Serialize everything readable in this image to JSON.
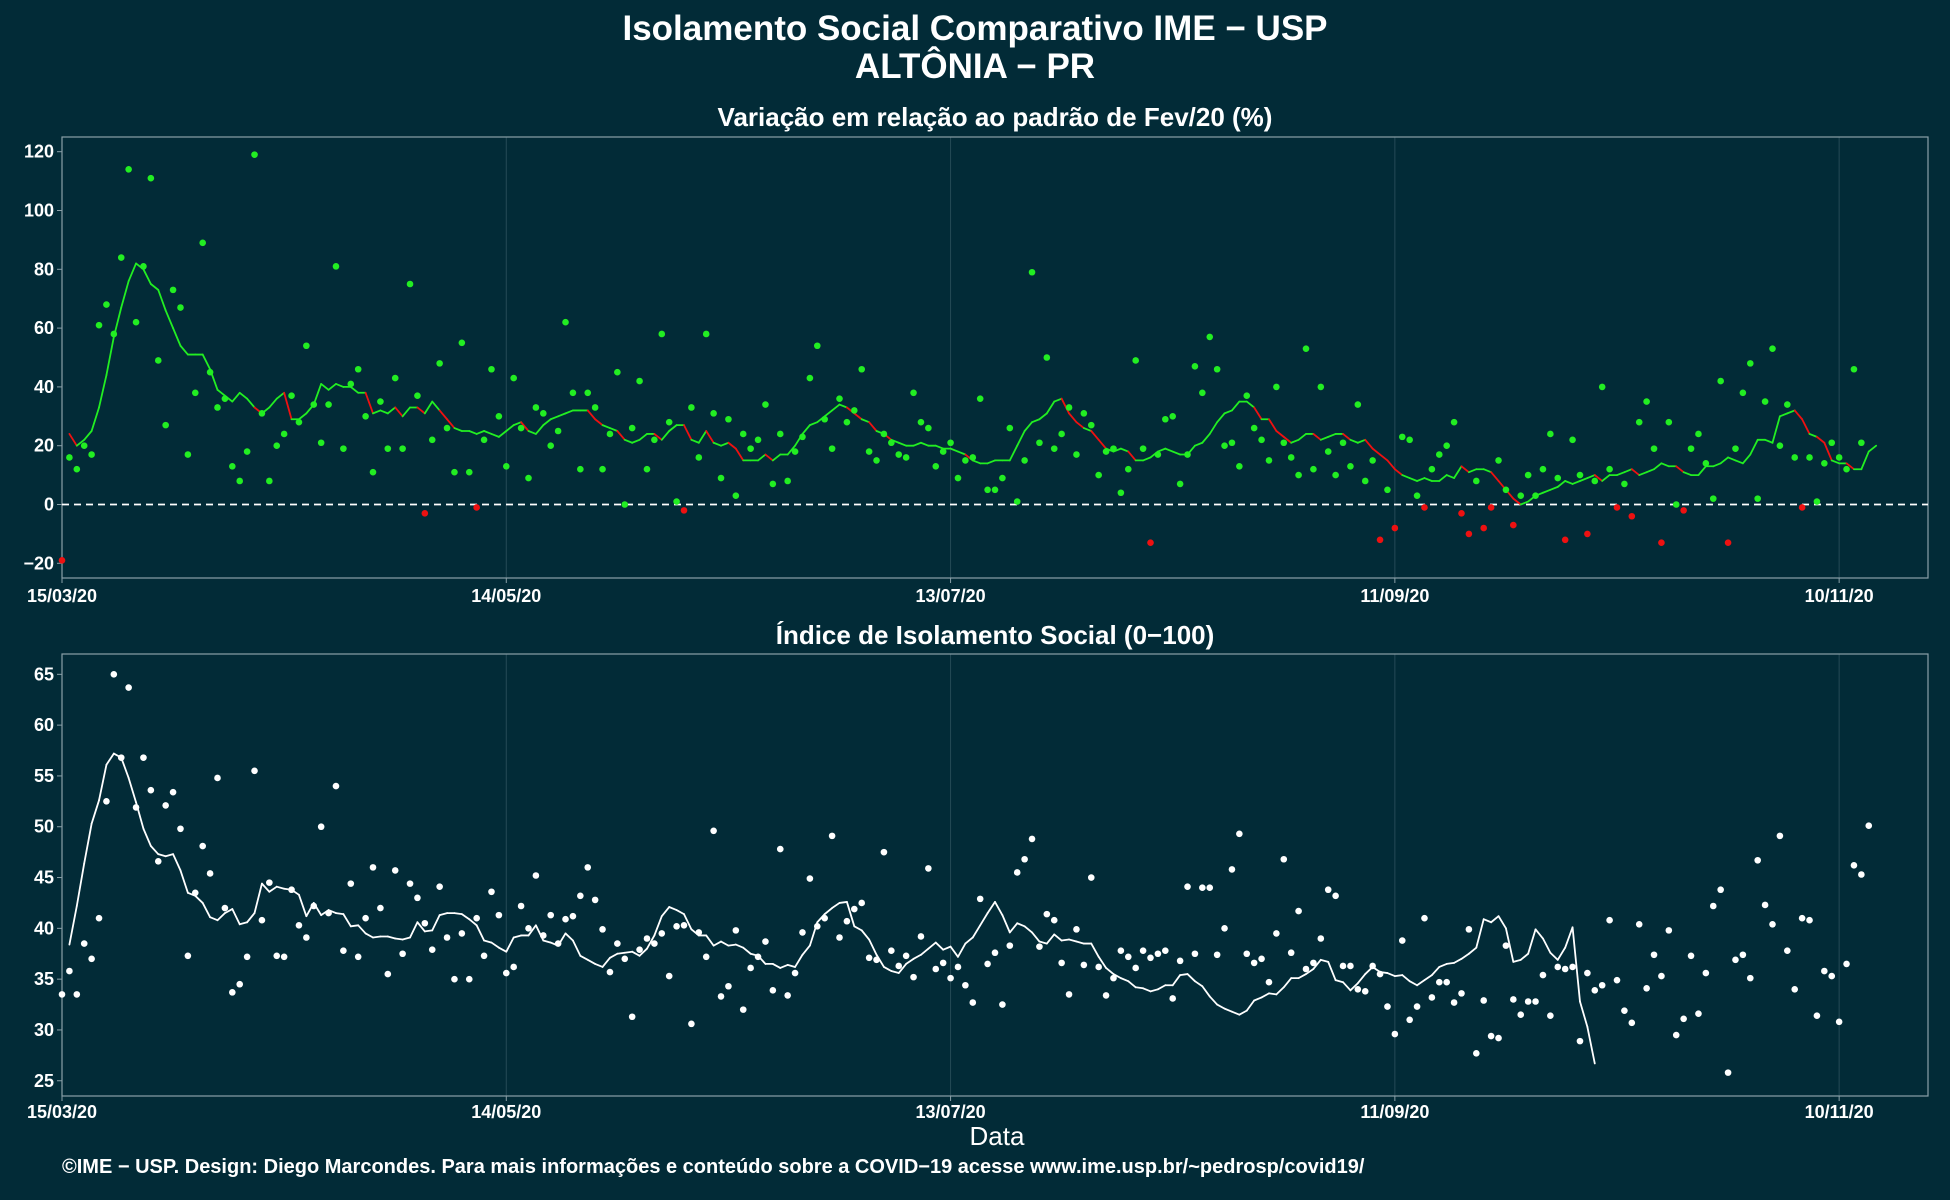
{
  "title": "Isolamento Social Comparativo IME − USP",
  "subtitle": "ALTÔNIA − PR",
  "xlabel": "Data",
  "footer": "©IME − USP. Design: Diego Marcondes. Para mais informações e conteúdo sobre a COVID−19 acesse www.ime.usp.br/~pedrosp/covid19/",
  "colors": {
    "background": "#022b37",
    "positive": "#22ee22",
    "negative": "#ee1111",
    "index": "#ffffff",
    "border": "#8aa0a8",
    "grid": "#254a56"
  },
  "chart_data": [
    {
      "type": "scatter",
      "title": "Variação em relação ao padrão de Fev/20 (%)",
      "x_tick_labels": [
        "15/03/20",
        "14/05/20",
        "13/07/20",
        "11/09/20",
        "10/11/20"
      ],
      "x_tick_days": [
        0,
        60,
        120,
        180,
        240
      ],
      "x_range_days": [
        0,
        252
      ],
      "start_label": "15/03/20",
      "y_ticks": [
        -20,
        0,
        20,
        40,
        60,
        80,
        100,
        120
      ],
      "ylim": [
        -25,
        125
      ],
      "reference_line": 0,
      "series": [
        {
          "role": "points",
          "values": [
            -19,
            16,
            12,
            20,
            17,
            61,
            68,
            58,
            84,
            114,
            62,
            81,
            111,
            49,
            27,
            73,
            67,
            17,
            38,
            89,
            45,
            33,
            36,
            13,
            8,
            18,
            119,
            31,
            8,
            20,
            24,
            37,
            28,
            54,
            34,
            21,
            34,
            81,
            19,
            41,
            46,
            30,
            11,
            35,
            19,
            43,
            19,
            75,
            37,
            -3,
            22,
            48,
            26,
            11,
            55,
            11,
            -1,
            22,
            46,
            30,
            13,
            43,
            26,
            9,
            33,
            31,
            20,
            25,
            62,
            38,
            12,
            38,
            33,
            12,
            24,
            45,
            0,
            26,
            42,
            12,
            22,
            58,
            28,
            1,
            -2,
            33,
            16,
            58,
            31,
            9,
            29,
            3,
            24,
            19,
            22,
            34,
            7,
            24,
            8,
            18,
            23,
            43,
            54,
            29,
            19,
            36,
            28,
            32,
            46,
            18,
            15,
            24,
            21,
            17,
            16,
            38,
            28,
            26,
            13,
            18,
            21,
            9,
            15,
            16,
            36,
            5,
            5,
            9,
            26,
            1,
            15,
            79,
            21,
            50,
            19,
            24,
            33,
            17,
            31,
            27,
            10,
            18,
            19,
            4,
            12,
            49,
            19,
            -13,
            17,
            29,
            30,
            7,
            17,
            47,
            38,
            57,
            46,
            20,
            21,
            13,
            37,
            26,
            22,
            15,
            40,
            21,
            16,
            10,
            53,
            12,
            40,
            18,
            10,
            21,
            13,
            34,
            8,
            15,
            -12,
            5,
            -8,
            23,
            22,
            3,
            -1,
            12,
            17,
            20,
            28,
            -3,
            -10,
            8,
            -8,
            -1,
            15,
            5,
            -7,
            3,
            10,
            3,
            12,
            24,
            9,
            -12,
            22,
            10,
            -10,
            8,
            40,
            12,
            -1,
            7,
            -4,
            28,
            35,
            19,
            -13,
            28,
            0,
            -2,
            19,
            24,
            14,
            2,
            42,
            -13,
            19,
            38,
            48,
            2,
            35,
            53,
            20,
            34,
            16,
            -1,
            16,
            1,
            14,
            21,
            16,
            12,
            46,
            21
          ]
        },
        {
          "role": "moving_average",
          "values": [
            24,
            20,
            22,
            25,
            33,
            44,
            57,
            67,
            76,
            82,
            80,
            75,
            73,
            66,
            60,
            54,
            51,
            51,
            51,
            46,
            39,
            37,
            35,
            38,
            36,
            33,
            31,
            33,
            36,
            38,
            29,
            29,
            31,
            34,
            41,
            39,
            41,
            40,
            40,
            38,
            38,
            31,
            32,
            31,
            33,
            30,
            33,
            33,
            31,
            35,
            32,
            29,
            26,
            25,
            25,
            24,
            25,
            24,
            23,
            25,
            27,
            28,
            25,
            24,
            27,
            29,
            30,
            31,
            32,
            32,
            32,
            29,
            27,
            26,
            25,
            22,
            21,
            22,
            24,
            24,
            22,
            25,
            27,
            27,
            22,
            21,
            25,
            21,
            20,
            21,
            19,
            15,
            15,
            15,
            17,
            15,
            17,
            17,
            20,
            24,
            27,
            28,
            30,
            32,
            34,
            33,
            31,
            29,
            28,
            25,
            24,
            22,
            21,
            20,
            20,
            21,
            20,
            20,
            19,
            19,
            18,
            17,
            15,
            14,
            14,
            15,
            15,
            15,
            20,
            25,
            28,
            29,
            31,
            35,
            36,
            31,
            28,
            26,
            25,
            22,
            19,
            18,
            19,
            18,
            15,
            15,
            16,
            18,
            19,
            18,
            17,
            17,
            20,
            21,
            24,
            28,
            31,
            32,
            35,
            35,
            33,
            29,
            29,
            25,
            23,
            21,
            22,
            24,
            24,
            22,
            23,
            24,
            24,
            22,
            21,
            22,
            19,
            17,
            15,
            12,
            10,
            9,
            8,
            9,
            8,
            8,
            10,
            9,
            13,
            11,
            12,
            12,
            11,
            8,
            5,
            2,
            0,
            1,
            3,
            4,
            5,
            6,
            8,
            7,
            8,
            9,
            10,
            8,
            10,
            10,
            11,
            12,
            10,
            11,
            12,
            14,
            13,
            13,
            11,
            10,
            10,
            13,
            13,
            14,
            16,
            15,
            14,
            17,
            22,
            22,
            21,
            30,
            31,
            32,
            29,
            24,
            23,
            21,
            15,
            14,
            14,
            12,
            12,
            18,
            20
          ]
        }
      ]
    },
    {
      "type": "scatter",
      "title": "Índice de Isolamento Social (0−100)",
      "x_tick_labels": [
        "15/03/20",
        "14/05/20",
        "13/07/20",
        "11/09/20",
        "10/11/20"
      ],
      "x_tick_days": [
        0,
        60,
        120,
        180,
        240
      ],
      "x_range_days": [
        0,
        252
      ],
      "start_label": "15/03/20",
      "y_ticks": [
        25,
        30,
        35,
        40,
        45,
        50,
        55,
        60,
        65
      ],
      "ylim": [
        23.5,
        67
      ],
      "series": [
        {
          "role": "points",
          "values": [
            33.5,
            35.8,
            33.5,
            38.5,
            37,
            41,
            52.5,
            65,
            56.8,
            63.7,
            51.9,
            56.8,
            53.6,
            46.6,
            52.1,
            53.4,
            49.8,
            37.3,
            43.5,
            48.1,
            45.4,
            54.8,
            42,
            33.7,
            34.5,
            37.2,
            55.5,
            40.8,
            44.5,
            37.3,
            37.2,
            43.8,
            40.3,
            39.1,
            42.2,
            50,
            41.5,
            54,
            37.8,
            44.4,
            37.2,
            41,
            46,
            42,
            35.5,
            45.7,
            37.5,
            44.4,
            43,
            40.5,
            37.9,
            44.1,
            39.1,
            35,
            39.5,
            35,
            41,
            37.3,
            43.6,
            41.3,
            35.6,
            36.2,
            42.2,
            40,
            45.2,
            39.3,
            41.3,
            38.5,
            40.9,
            41.2,
            43.2,
            46,
            42.8,
            39.9,
            35.7,
            38.5,
            37,
            31.3,
            37.9,
            39,
            38.5,
            39.5,
            35.3,
            40.2,
            40.3,
            30.6,
            39.6,
            37.2,
            49.6,
            33.3,
            34.3,
            39.8,
            32,
            36.1,
            37.2,
            38.7,
            33.9,
            47.8,
            33.4,
            35.6,
            39.6,
            44.9,
            40.2,
            41,
            49.1,
            39.1,
            40.7,
            41.9,
            42.5,
            37.1,
            36.9,
            47.5,
            37.8,
            36.3,
            37.3,
            35.2,
            39.2,
            45.9,
            36,
            36.6,
            35.1,
            36.2,
            34.4,
            32.7,
            42.9,
            36.5,
            37.6,
            32.5,
            38.3,
            45.5,
            46.8,
            48.8,
            38.2,
            41.4,
            40.8,
            36.6,
            33.5,
            39.9,
            36.4,
            45,
            36.2,
            33.4,
            35.1,
            37.8,
            37.2,
            36.1,
            37.8,
            37.1,
            37.5,
            37.8,
            33.1,
            36.8,
            44.1,
            37.5,
            44,
            44,
            37.4,
            40,
            45.8,
            49.3,
            37.5,
            36.6,
            37,
            34.7,
            39.5,
            46.8,
            37.6,
            41.7,
            36,
            36.6,
            39,
            43.8,
            43.2,
            36.3,
            36.3,
            34,
            33.8,
            36.3,
            35.5,
            32.3,
            29.6,
            38.8,
            31,
            32.3,
            41,
            33.2,
            34.7,
            34.7,
            32.7,
            33.6,
            39.9,
            27.7,
            32.9,
            29.4,
            29.2,
            38.3,
            33,
            31.5,
            32.8,
            32.8,
            35.4,
            31.4,
            36.2,
            36,
            36.2,
            28.9,
            35.6,
            33.9,
            34.4,
            40.8,
            34.9,
            31.9,
            30.7,
            40.4,
            34.1,
            37.4,
            35.3,
            39.8,
            29.5,
            31.1,
            37.3,
            31.6,
            35.6,
            42.2,
            43.8,
            25.8,
            36.9,
            37.4,
            35.1,
            46.7,
            42.3,
            40.4,
            49.1,
            37.8,
            34,
            41,
            40.8,
            31.4,
            35.8,
            35.3,
            30.8,
            36.5,
            46.2,
            45.3,
            50.1
          ]
        },
        {
          "role": "moving_average",
          "values": [
            38.4,
            42.2,
            46.4,
            50.3,
            52.6,
            56.1,
            57.2,
            56.8,
            54.8,
            52.4,
            49.8,
            48.1,
            47.3,
            47.1,
            47.3,
            45.7,
            43.5,
            43.2,
            42.5,
            41.1,
            40.8,
            41.5,
            41.9,
            40.4,
            40.6,
            41.5,
            44.4,
            43.6,
            44.1,
            43.9,
            43.8,
            43.3,
            41.2,
            42.5,
            41.3,
            41.8,
            41.5,
            41.4,
            40.2,
            40.3,
            39.5,
            39.1,
            39.2,
            39.2,
            39,
            38.9,
            39.1,
            40.6,
            39.7,
            39.8,
            41.3,
            41.5,
            41.5,
            41.4,
            40.9,
            40.3,
            38.8,
            38.6,
            38.1,
            37.7,
            39.1,
            39.3,
            39.3,
            40.3,
            38.8,
            38.6,
            38.3,
            39.5,
            38.8,
            37.3,
            36.9,
            36.5,
            36.2,
            37.1,
            37.5,
            37.6,
            37.7,
            37.3,
            38,
            39.3,
            41.2,
            42.1,
            41.8,
            41.4,
            39.9,
            39.3,
            39.3,
            38.3,
            38.7,
            38.3,
            38.4,
            38.1,
            37.5,
            37.3,
            36.5,
            36.5,
            36.1,
            36.4,
            36.2,
            37.4,
            38.3,
            40.6,
            41.4,
            42,
            42.5,
            42.6,
            40.2,
            39.8,
            38.9,
            37.4,
            36.2,
            35.8,
            35.6,
            36.5,
            37,
            37.4,
            38,
            38.6,
            37.9,
            38.2,
            37.2,
            38.5,
            39.1,
            40.3,
            41.5,
            42.6,
            41.3,
            39.6,
            40.5,
            40.2,
            39.6,
            38.7,
            38.5,
            39.4,
            38.8,
            38.9,
            38.7,
            38.5,
            38.5,
            37.2,
            36.1,
            35.5,
            35.1,
            34.8,
            34.2,
            34.1,
            33.8,
            34,
            34.4,
            34.4,
            35.4,
            35.5,
            34.8,
            34.3,
            33.3,
            32.5,
            32.1,
            31.8,
            31.5,
            31.9,
            32.9,
            33.2,
            33.6,
            33.5,
            34.2,
            35.1,
            35.1,
            35.5,
            36,
            36.9,
            36.7,
            34.9,
            34.7,
            33.9,
            34.6,
            35.5,
            36.2,
            35.7,
            35.6,
            35.3,
            35.4,
            34.8,
            34.4,
            34.9,
            35.4,
            36.2,
            36.5,
            36.6,
            37,
            37.5,
            38.1,
            40.9,
            40.6,
            41.2,
            40,
            36.7,
            36.9,
            37.5,
            39.9,
            39,
            37.6,
            36.9,
            38.1,
            40.1,
            32.8,
            30.3,
            26.7
          ]
        }
      ]
    }
  ]
}
